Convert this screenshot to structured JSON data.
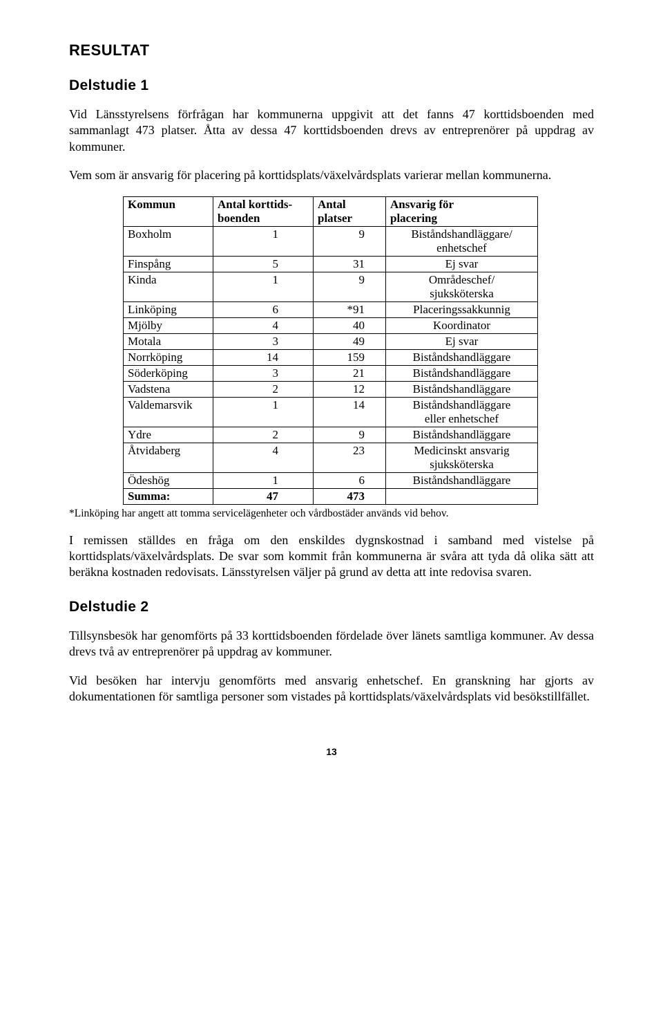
{
  "heading_resultat": "RESULTAT",
  "heading_delstudie1": "Delstudie 1",
  "para1": "Vid Länsstyrelsens förfrågan har kommunerna uppgivit att det fanns 47 korttidsboenden med sammanlagt 473 platser. Åtta av dessa 47 korttidsboenden drevs av entreprenörer på uppdrag av kommuner.",
  "para2": "Vem som är ansvarig för placering på korttidsplats/växelvårdsplats varierar mellan kommunerna.",
  "table": {
    "headers": {
      "c1a": "Kommun",
      "c2a": "Antal korttids-",
      "c2b": "boenden",
      "c3a": "Antal",
      "c3b": "platser",
      "c4a": "Ansvarig för",
      "c4b": "placering"
    },
    "rows": [
      {
        "kommun": "Boxholm",
        "kb": "1",
        "pl": "9",
        "ansv": "Biståndshandläggare/\nenhetschef"
      },
      {
        "kommun": "Finspång",
        "kb": "5",
        "pl": "31",
        "ansv": "Ej svar"
      },
      {
        "kommun": "Kinda",
        "kb": "1",
        "pl": "9",
        "ansv": "Områdeschef/\nsjuksköterska"
      },
      {
        "kommun": "Linköping",
        "kb": "6",
        "pl": "*91",
        "ansv": "Placeringssakkunnig"
      },
      {
        "kommun": "Mjölby",
        "kb": "4",
        "pl": "40",
        "ansv": "Koordinator"
      },
      {
        "kommun": "Motala",
        "kb": "3",
        "pl": "49",
        "ansv": "Ej svar"
      },
      {
        "kommun": "Norrköping",
        "kb": "14",
        "pl": "159",
        "ansv": "Biståndshandläggare"
      },
      {
        "kommun": "Söderköping",
        "kb": "3",
        "pl": "21",
        "ansv": "Biståndshandläggare"
      },
      {
        "kommun": "Vadstena",
        "kb": "2",
        "pl": "12",
        "ansv": "Biståndshandläggare"
      },
      {
        "kommun": "Valdemarsvik",
        "kb": "1",
        "pl": "14",
        "ansv": "Biståndshandläggare\neller enhetschef"
      },
      {
        "kommun": "Ydre",
        "kb": "2",
        "pl": "9",
        "ansv": "Biståndshandläggare"
      },
      {
        "kommun": "Åtvidaberg",
        "kb": "4",
        "pl": "23",
        "ansv": "Medicinskt ansvarig\nsjuksköterska"
      },
      {
        "kommun": "Ödeshög",
        "kb": "1",
        "pl": "6",
        "ansv": "Biståndshandläggare"
      }
    ],
    "sum": {
      "label": "Summa:",
      "kb": "47",
      "pl": "473",
      "ansv": ""
    }
  },
  "footnote": "*Linköping har angett att tomma servicelägenheter och vårdbostäder används vid behov.",
  "para3": "I remissen ställdes en fråga om den enskildes dygnskostnad i samband med vistelse på korttidsplats/växelvårdsplats. De svar som kommit från kommunerna är svåra att tyda då olika sätt att beräkna kostnaden redovisats. Länsstyrelsen väljer på grund av detta att inte redovisa svaren.",
  "heading_delstudie2": "Delstudie 2",
  "para4": "Tillsynsbesök har genomförts på 33  korttidsboenden fördelade över länets samtliga kommuner. Av dessa drevs två av entreprenörer på uppdrag av kommuner.",
  "para5": "Vid besöken har intervju genomförts med ansvarig enhetschef. En granskning har gjorts av dokumentationen för samtliga personer som vistades på korttidsplats/växelvårdsplats vid besökstillfället.",
  "page_number": "13"
}
